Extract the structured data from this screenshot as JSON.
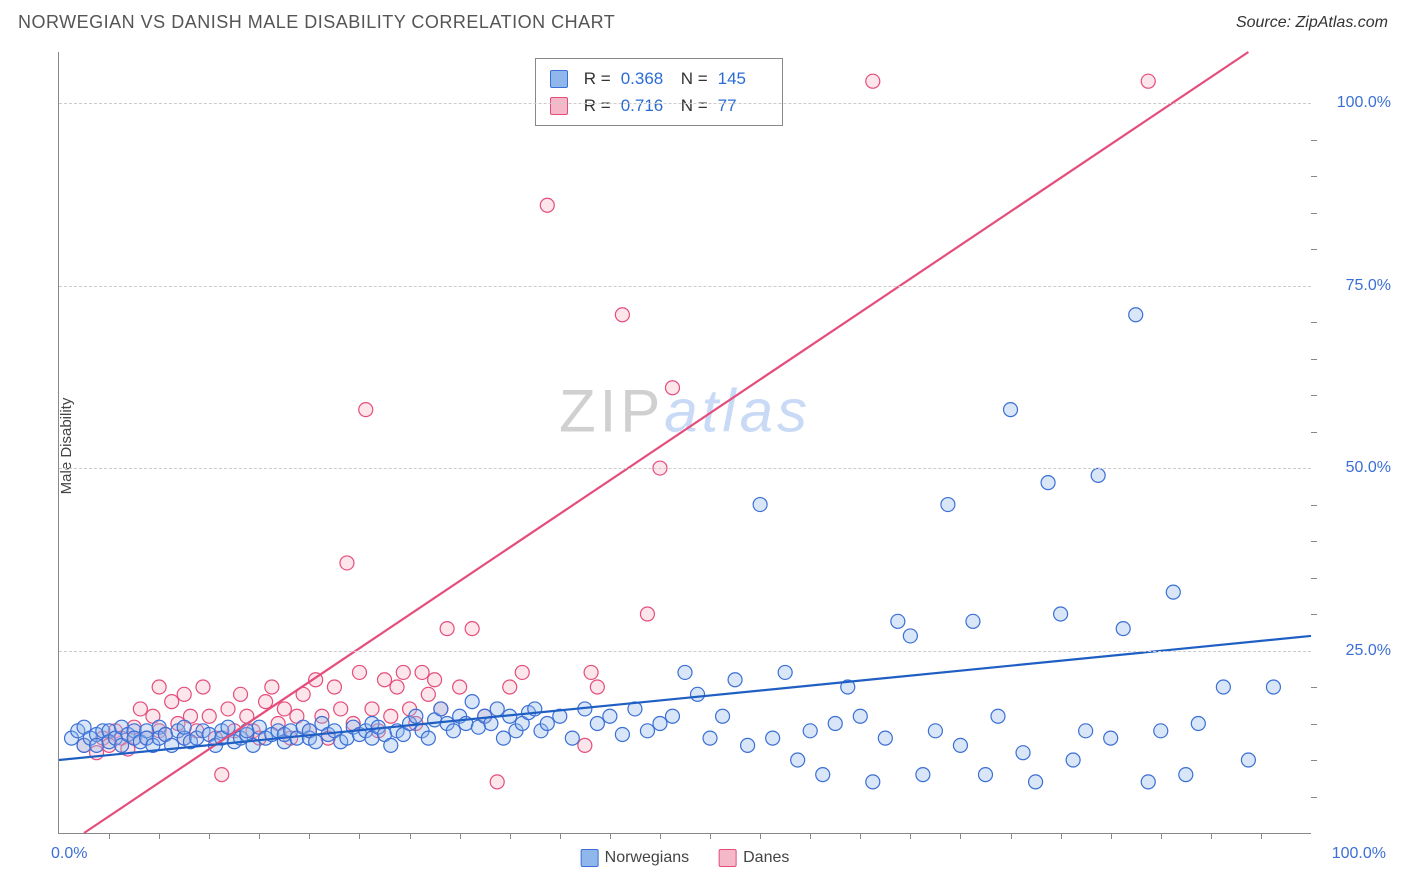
{
  "title": "NORWEGIAN VS DANISH MALE DISABILITY CORRELATION CHART",
  "source": "Source: ZipAtlas.com",
  "ylabel": "Male Disability",
  "watermark": {
    "part1": "ZIP",
    "part2": "atlas"
  },
  "chart": {
    "type": "scatter",
    "xlim": [
      0,
      100
    ],
    "ylim": [
      0,
      107
    ],
    "y_ticks": [
      25,
      50,
      75,
      100
    ],
    "y_tick_labels": [
      "25.0%",
      "50.0%",
      "75.0%",
      "100.0%"
    ],
    "x_origin_label": "0.0%",
    "x_end_label": "100.0%",
    "x_minor_ticks": [
      4,
      8,
      12,
      16,
      20,
      24,
      28,
      32,
      36,
      40,
      44,
      48,
      52,
      56,
      60,
      64,
      68,
      72,
      76,
      80,
      84,
      88,
      92,
      96
    ],
    "y_minor_ticks": [
      5,
      10,
      15,
      20,
      30,
      35,
      40,
      45,
      55,
      60,
      65,
      70,
      80,
      85,
      90,
      95
    ],
    "background_color": "#ffffff",
    "grid_color": "#cccccc",
    "axis_color": "#888888",
    "marker_radius": 7,
    "series": [
      {
        "name": "Norwegians",
        "color_fill": "#8fb7ec",
        "color_stroke": "#3b6fd6",
        "R": "0.368",
        "N": "145",
        "regression": {
          "x1": 0,
          "y1": 10,
          "x2": 100,
          "y2": 27,
          "color": "#1f5fc4",
          "width": 2.2
        },
        "points": [
          [
            1,
            13
          ],
          [
            1.5,
            14
          ],
          [
            2,
            12
          ],
          [
            2,
            14.5
          ],
          [
            2.5,
            13
          ],
          [
            3,
            13.5
          ],
          [
            3,
            12
          ],
          [
            3.5,
            14
          ],
          [
            4,
            14
          ],
          [
            4,
            12.5
          ],
          [
            4.5,
            13
          ],
          [
            5,
            14.5
          ],
          [
            5,
            12
          ],
          [
            5.5,
            13.5
          ],
          [
            6,
            14
          ],
          [
            6,
            13
          ],
          [
            6.5,
            12.5
          ],
          [
            7,
            14
          ],
          [
            7,
            13
          ],
          [
            7.5,
            12
          ],
          [
            8,
            14.5
          ],
          [
            8,
            13
          ],
          [
            8.5,
            13.5
          ],
          [
            9,
            12
          ],
          [
            9.5,
            14
          ],
          [
            10,
            13
          ],
          [
            10,
            14.5
          ],
          [
            10.5,
            12.5
          ],
          [
            11,
            13
          ],
          [
            11.5,
            14
          ],
          [
            12,
            13.5
          ],
          [
            12.5,
            12
          ],
          [
            13,
            14
          ],
          [
            13,
            13
          ],
          [
            13.5,
            14.5
          ],
          [
            14,
            12.5
          ],
          [
            14.5,
            13
          ],
          [
            15,
            13.5
          ],
          [
            15,
            14
          ],
          [
            15.5,
            12
          ],
          [
            16,
            14.5
          ],
          [
            16.5,
            13
          ],
          [
            17,
            13.5
          ],
          [
            17.5,
            14
          ],
          [
            18,
            12.5
          ],
          [
            18,
            13.5
          ],
          [
            18.5,
            14
          ],
          [
            19,
            13
          ],
          [
            19.5,
            14.5
          ],
          [
            20,
            13
          ],
          [
            20,
            14
          ],
          [
            20.5,
            12.5
          ],
          [
            21,
            15
          ],
          [
            21.5,
            13.5
          ],
          [
            22,
            14
          ],
          [
            22.5,
            12.5
          ],
          [
            23,
            13
          ],
          [
            23.5,
            14.5
          ],
          [
            24,
            13.5
          ],
          [
            24.5,
            14
          ],
          [
            25,
            15
          ],
          [
            25,
            13
          ],
          [
            25.5,
            14.5
          ],
          [
            26,
            13.5
          ],
          [
            26.5,
            12
          ],
          [
            27,
            14
          ],
          [
            27.5,
            13.5
          ],
          [
            28,
            15
          ],
          [
            28.5,
            16
          ],
          [
            29,
            14
          ],
          [
            29.5,
            13
          ],
          [
            30,
            15.5
          ],
          [
            30.5,
            17
          ],
          [
            31,
            15
          ],
          [
            31.5,
            14
          ],
          [
            32,
            16
          ],
          [
            32.5,
            15
          ],
          [
            33,
            18
          ],
          [
            33.5,
            14.5
          ],
          [
            34,
            16
          ],
          [
            34.5,
            15
          ],
          [
            35,
            17
          ],
          [
            35.5,
            13
          ],
          [
            36,
            16
          ],
          [
            36.5,
            14
          ],
          [
            37,
            15
          ],
          [
            37.5,
            16.5
          ],
          [
            38,
            17
          ],
          [
            38.5,
            14
          ],
          [
            39,
            15
          ],
          [
            40,
            16
          ],
          [
            41,
            13
          ],
          [
            42,
            17
          ],
          [
            43,
            15
          ],
          [
            44,
            16
          ],
          [
            45,
            13.5
          ],
          [
            46,
            17
          ],
          [
            47,
            14
          ],
          [
            48,
            15
          ],
          [
            49,
            16
          ],
          [
            50,
            22
          ],
          [
            51,
            19
          ],
          [
            52,
            13
          ],
          [
            53,
            16
          ],
          [
            54,
            21
          ],
          [
            55,
            12
          ],
          [
            56,
            45
          ],
          [
            57,
            13
          ],
          [
            58,
            22
          ],
          [
            59,
            10
          ],
          [
            60,
            14
          ],
          [
            61,
            8
          ],
          [
            62,
            15
          ],
          [
            63,
            20
          ],
          [
            64,
            16
          ],
          [
            65,
            7
          ],
          [
            66,
            13
          ],
          [
            67,
            29
          ],
          [
            68,
            27
          ],
          [
            69,
            8
          ],
          [
            70,
            14
          ],
          [
            71,
            45
          ],
          [
            72,
            12
          ],
          [
            73,
            29
          ],
          [
            74,
            8
          ],
          [
            75,
            16
          ],
          [
            76,
            58
          ],
          [
            77,
            11
          ],
          [
            78,
            7
          ],
          [
            79,
            48
          ],
          [
            80,
            30
          ],
          [
            81,
            10
          ],
          [
            82,
            14
          ],
          [
            83,
            49
          ],
          [
            84,
            13
          ],
          [
            85,
            28
          ],
          [
            86,
            71
          ],
          [
            87,
            7
          ],
          [
            88,
            14
          ],
          [
            89,
            33
          ],
          [
            90,
            8
          ],
          [
            91,
            15
          ],
          [
            93,
            20
          ],
          [
            95,
            10
          ],
          [
            97,
            20
          ]
        ]
      },
      {
        "name": "Danes",
        "color_fill": "#f5b8c9",
        "color_stroke": "#e54d7b",
        "R": "0.716",
        "N": "77",
        "regression": {
          "x1": 2,
          "y1": 0,
          "x2": 95,
          "y2": 107,
          "color": "#e54d7b",
          "width": 2.2
        },
        "points": [
          [
            2,
            12
          ],
          [
            3,
            11
          ],
          [
            3.5,
            13
          ],
          [
            4,
            12
          ],
          [
            4.5,
            14
          ],
          [
            5,
            13
          ],
          [
            5.5,
            11.5
          ],
          [
            6,
            13
          ],
          [
            6,
            14.5
          ],
          [
            6.5,
            17
          ],
          [
            7,
            13
          ],
          [
            7.5,
            16
          ],
          [
            8,
            20
          ],
          [
            8,
            14
          ],
          [
            8.5,
            13.5
          ],
          [
            9,
            18
          ],
          [
            9.5,
            15
          ],
          [
            10,
            19
          ],
          [
            10,
            13
          ],
          [
            10.5,
            16
          ],
          [
            11,
            14
          ],
          [
            11.5,
            20
          ],
          [
            12,
            16
          ],
          [
            12.5,
            13
          ],
          [
            13,
            8
          ],
          [
            13.5,
            17
          ],
          [
            14,
            14
          ],
          [
            14.5,
            19
          ],
          [
            15,
            16
          ],
          [
            15.5,
            14
          ],
          [
            16,
            13
          ],
          [
            16.5,
            18
          ],
          [
            17,
            20
          ],
          [
            17.5,
            15
          ],
          [
            18,
            17
          ],
          [
            18.5,
            13
          ],
          [
            19,
            16
          ],
          [
            19.5,
            19
          ],
          [
            20,
            14
          ],
          [
            20.5,
            21
          ],
          [
            21,
            16
          ],
          [
            21.5,
            13
          ],
          [
            22,
            20
          ],
          [
            22.5,
            17
          ],
          [
            23,
            37
          ],
          [
            23.5,
            15
          ],
          [
            24,
            22
          ],
          [
            24.5,
            58
          ],
          [
            25,
            17
          ],
          [
            25.5,
            14
          ],
          [
            26,
            21
          ],
          [
            26.5,
            16
          ],
          [
            27,
            20
          ],
          [
            27.5,
            22
          ],
          [
            28,
            17
          ],
          [
            28.5,
            15
          ],
          [
            29,
            22
          ],
          [
            29.5,
            19
          ],
          [
            30,
            21
          ],
          [
            30.5,
            17
          ],
          [
            31,
            28
          ],
          [
            32,
            20
          ],
          [
            33,
            28
          ],
          [
            34,
            16
          ],
          [
            35,
            7
          ],
          [
            36,
            20
          ],
          [
            37,
            22
          ],
          [
            39,
            86
          ],
          [
            42,
            12
          ],
          [
            42.5,
            22
          ],
          [
            43,
            20
          ],
          [
            45,
            71
          ],
          [
            47,
            30
          ],
          [
            48,
            50
          ],
          [
            49,
            61
          ],
          [
            65,
            103
          ],
          [
            87,
            103
          ]
        ]
      }
    ]
  },
  "legend": {
    "label1": "Norwegians",
    "label2": "Danes"
  },
  "stats": {
    "r_label": "R =",
    "n_label": "N ="
  }
}
